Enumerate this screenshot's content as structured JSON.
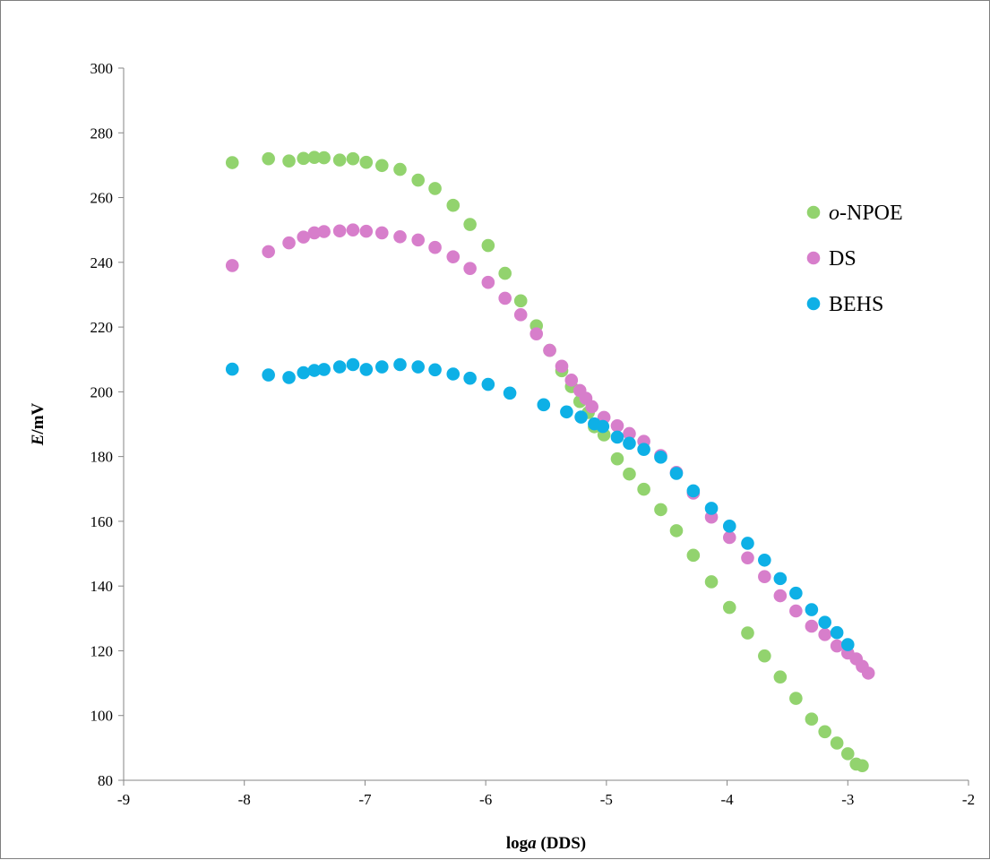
{
  "chart_data": {
    "type": "scatter",
    "title": "",
    "xlabel": {
      "prefix": "log",
      "italic": "a",
      "suffix": " (DDS)"
    },
    "ylabel": {
      "italic": "E",
      "suffix": "/mV"
    },
    "xlim": [
      -9,
      -2
    ],
    "ylim": [
      80,
      300
    ],
    "x_ticks": [
      -9,
      -8,
      -7,
      -6,
      -5,
      -4,
      -3,
      -2
    ],
    "y_ticks": [
      80,
      100,
      120,
      140,
      160,
      180,
      200,
      220,
      240,
      260,
      280,
      300
    ],
    "grid": false,
    "legend_position": "right",
    "series": [
      {
        "name": "o-NPOE",
        "name_parts": {
          "italic": "o",
          "rest": "-NPOE"
        },
        "color": "#92d36e",
        "points": [
          [
            -8.1,
            270.8
          ],
          [
            -7.8,
            272.0
          ],
          [
            -7.63,
            271.3
          ],
          [
            -7.51,
            272.1
          ],
          [
            -7.42,
            272.4
          ],
          [
            -7.34,
            272.3
          ],
          [
            -7.21,
            271.6
          ],
          [
            -7.1,
            272.0
          ],
          [
            -6.99,
            270.9
          ],
          [
            -6.86,
            269.9
          ],
          [
            -6.71,
            268.7
          ],
          [
            -6.56,
            265.4
          ],
          [
            -6.42,
            262.8
          ],
          [
            -6.27,
            257.6
          ],
          [
            -6.13,
            251.7
          ],
          [
            -5.98,
            245.2
          ],
          [
            -5.84,
            236.6
          ],
          [
            -5.71,
            228.1
          ],
          [
            -5.58,
            220.4
          ],
          [
            -5.47,
            212.8
          ],
          [
            -5.37,
            206.5
          ],
          [
            -5.29,
            201.6
          ],
          [
            -5.22,
            197.0
          ],
          [
            -5.15,
            193.6
          ],
          [
            -5.1,
            189.2
          ],
          [
            -5.02,
            186.7
          ],
          [
            -4.91,
            179.3
          ],
          [
            -4.81,
            174.6
          ],
          [
            -4.69,
            169.9
          ],
          [
            -4.55,
            163.6
          ],
          [
            -4.42,
            157.1
          ],
          [
            -4.28,
            149.5
          ],
          [
            -4.13,
            141.3
          ],
          [
            -3.98,
            133.4
          ],
          [
            -3.83,
            125.5
          ],
          [
            -3.69,
            118.4
          ],
          [
            -3.56,
            111.9
          ],
          [
            -3.43,
            105.3
          ],
          [
            -3.3,
            98.9
          ],
          [
            -3.19,
            95.0
          ],
          [
            -3.09,
            91.5
          ],
          [
            -3.0,
            88.2
          ],
          [
            -2.93,
            85.0
          ],
          [
            -2.88,
            84.5
          ]
        ]
      },
      {
        "name": "DS",
        "name_parts": {
          "italic": "",
          "rest": "DS"
        },
        "color": "#d77ecb",
        "points": [
          [
            -8.1,
            239.0
          ],
          [
            -7.8,
            243.3
          ],
          [
            -7.63,
            246.0
          ],
          [
            -7.51,
            247.8
          ],
          [
            -7.42,
            249.1
          ],
          [
            -7.34,
            249.5
          ],
          [
            -7.21,
            249.7
          ],
          [
            -7.1,
            250.0
          ],
          [
            -6.99,
            249.6
          ],
          [
            -6.86,
            249.1
          ],
          [
            -6.71,
            247.9
          ],
          [
            -6.56,
            246.9
          ],
          [
            -6.42,
            244.6
          ],
          [
            -6.27,
            241.7
          ],
          [
            -6.13,
            238.1
          ],
          [
            -5.98,
            233.8
          ],
          [
            -5.84,
            228.9
          ],
          [
            -5.71,
            223.8
          ],
          [
            -5.58,
            217.9
          ],
          [
            -5.47,
            212.8
          ],
          [
            -5.37,
            207.9
          ],
          [
            -5.29,
            203.6
          ],
          [
            -5.22,
            200.4
          ],
          [
            -5.17,
            198.0
          ],
          [
            -5.12,
            195.4
          ],
          [
            -5.02,
            192.1
          ],
          [
            -4.91,
            189.5
          ],
          [
            -4.81,
            187.1
          ],
          [
            -4.69,
            184.7
          ],
          [
            -4.55,
            180.3
          ],
          [
            -4.42,
            175.1
          ],
          [
            -4.28,
            168.7
          ],
          [
            -4.13,
            161.3
          ],
          [
            -3.98,
            155.0
          ],
          [
            -3.83,
            148.7
          ],
          [
            -3.69,
            142.9
          ],
          [
            -3.56,
            137.0
          ],
          [
            -3.43,
            132.3
          ],
          [
            -3.3,
            127.6
          ],
          [
            -3.19,
            125.0
          ],
          [
            -3.09,
            121.5
          ],
          [
            -3.0,
            119.3
          ],
          [
            -2.93,
            117.5
          ],
          [
            -2.88,
            115.2
          ],
          [
            -2.83,
            113.1
          ]
        ]
      },
      {
        "name": "BEHS",
        "name_parts": {
          "italic": "",
          "rest": "BEHS"
        },
        "color": "#0eb0e6",
        "points": [
          [
            -8.1,
            207.0
          ],
          [
            -7.8,
            205.2
          ],
          [
            -7.63,
            204.4
          ],
          [
            -7.51,
            205.9
          ],
          [
            -7.42,
            206.6
          ],
          [
            -7.34,
            206.9
          ],
          [
            -7.21,
            207.7
          ],
          [
            -7.1,
            208.4
          ],
          [
            -6.99,
            206.9
          ],
          [
            -6.86,
            207.7
          ],
          [
            -6.71,
            208.4
          ],
          [
            -6.56,
            207.7
          ],
          [
            -6.42,
            206.8
          ],
          [
            -6.27,
            205.5
          ],
          [
            -6.13,
            204.2
          ],
          [
            -5.98,
            202.3
          ],
          [
            -5.8,
            199.6
          ],
          [
            -5.52,
            196.0
          ],
          [
            -5.33,
            193.8
          ],
          [
            -5.21,
            192.2
          ],
          [
            -5.1,
            190.1
          ],
          [
            -5.03,
            189.3
          ],
          [
            -4.91,
            186.0
          ],
          [
            -4.81,
            184.1
          ],
          [
            -4.69,
            182.2
          ],
          [
            -4.55,
            179.8
          ],
          [
            -4.42,
            174.8
          ],
          [
            -4.28,
            169.4
          ],
          [
            -4.13,
            164.0
          ],
          [
            -3.98,
            158.5
          ],
          [
            -3.83,
            153.2
          ],
          [
            -3.69,
            148.0
          ],
          [
            -3.56,
            142.3
          ],
          [
            -3.43,
            137.8
          ],
          [
            -3.3,
            132.7
          ],
          [
            -3.19,
            128.8
          ],
          [
            -3.09,
            125.6
          ],
          [
            -3.0,
            121.9
          ]
        ]
      }
    ]
  }
}
